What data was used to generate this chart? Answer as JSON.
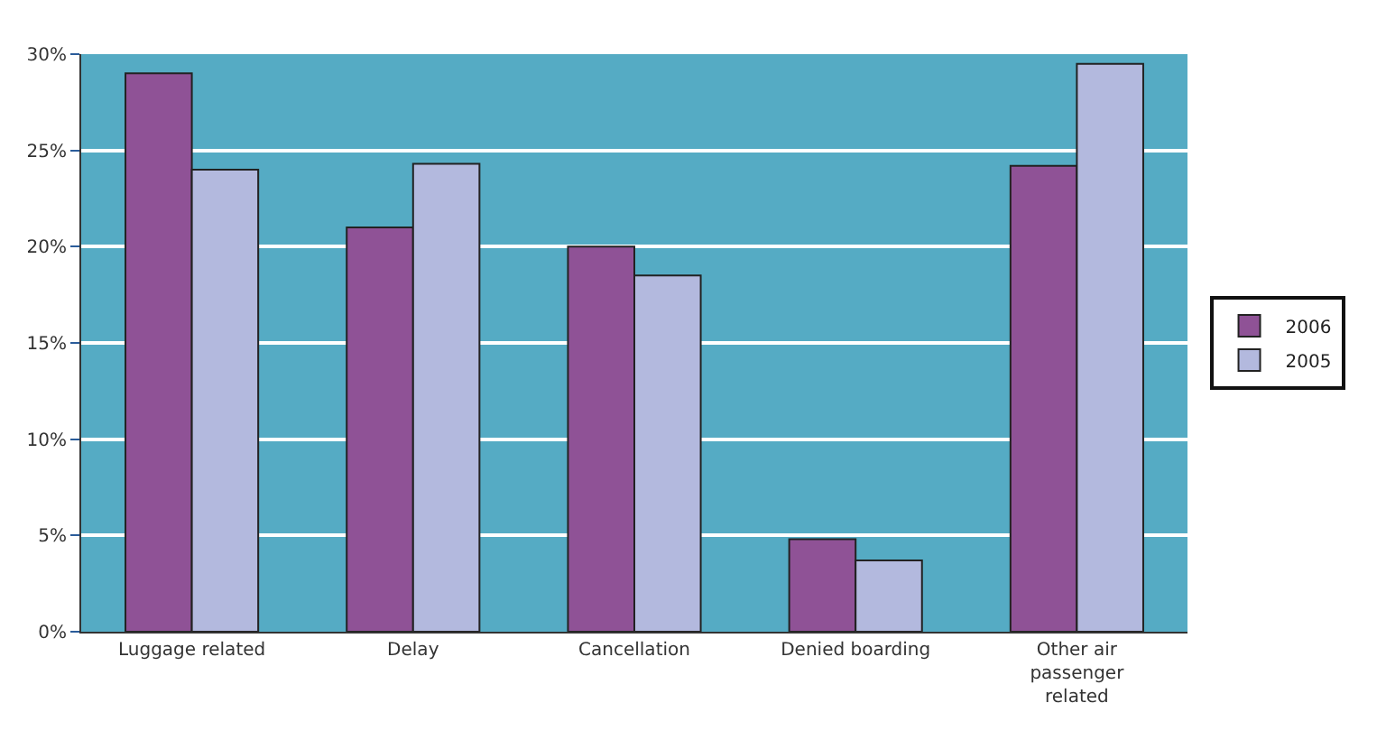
{
  "chart_data": {
    "type": "bar",
    "categories": [
      "Luggage related",
      "Delay",
      "Cancellation",
      "Denied boarding",
      "Other air passenger related"
    ],
    "series": [
      {
        "name": "2006",
        "color": "#8f5296",
        "values": [
          29.0,
          21.0,
          20.0,
          4.8,
          24.2
        ]
      },
      {
        "name": "2005",
        "color": "#b3b9de",
        "values": [
          24.0,
          24.3,
          18.5,
          3.7,
          29.5
        ]
      }
    ],
    "ylim": [
      0,
      30
    ],
    "yticks": [
      {
        "value": 0,
        "label": "0%"
      },
      {
        "value": 5,
        "label": "5%"
      },
      {
        "value": 10,
        "label": "10%"
      },
      {
        "value": 15,
        "label": "15%"
      },
      {
        "value": 20,
        "label": "20%"
      },
      {
        "value": 25,
        "label": "25%"
      },
      {
        "value": 30,
        "label": "30%"
      }
    ],
    "grid": "y",
    "legend": "right"
  }
}
